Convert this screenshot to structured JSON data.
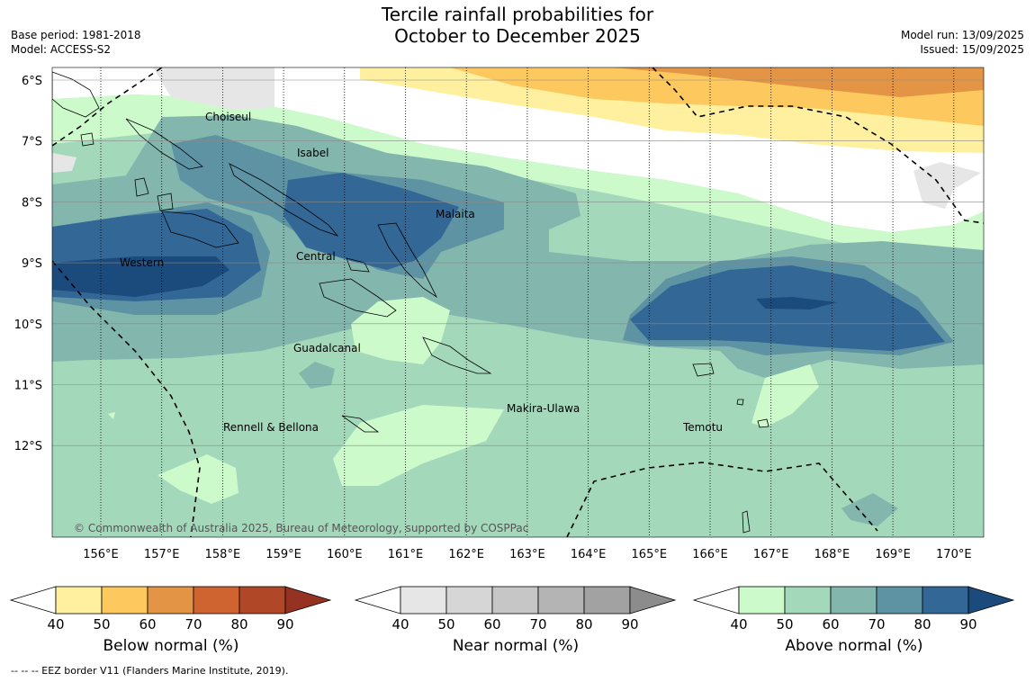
{
  "title_line1": "Tercile rainfall probabilities for",
  "title_line2": "October to December 2025",
  "base_period": "Base period: 1981-2018",
  "model": "Model: ACCESS-S2",
  "model_run": "Model run: 13/09/2025",
  "issued": "Issued: 15/09/2025",
  "lat_labels": [
    "6°S",
    "7°S",
    "8°S",
    "9°S",
    "10°S",
    "11°S",
    "12°S"
  ],
  "lon_labels": [
    "156°E",
    "157°E",
    "158°E",
    "159°E",
    "160°E",
    "161°E",
    "162°E",
    "163°E",
    "164°E",
    "165°E",
    "166°E",
    "167°E",
    "168°E",
    "169°E",
    "170°E"
  ],
  "regions": [
    "Choiseul",
    "Isabel",
    "Malaita",
    "Western",
    "Central",
    "Guadalcanal",
    "Makira-Ulawa",
    "Rennell & Bellona",
    "Temotu"
  ],
  "copyright": "© Commonwealth of Australia 2025, Bureau of Meteorology, supported by COSPPac",
  "colorbars": [
    {
      "title": "Below normal (%)",
      "ticks": [
        "40",
        "50",
        "60",
        "70",
        "80",
        "90"
      ],
      "colors": [
        "#fff0a0",
        "#fdc85e",
        "#e39545",
        "#cf6431",
        "#b04828",
        "#963222"
      ]
    },
    {
      "title": "Near normal (%)",
      "ticks": [
        "40",
        "50",
        "60",
        "70",
        "80",
        "90"
      ],
      "colors": [
        "#e6e6e6",
        "#d6d6d6",
        "#c6c6c6",
        "#b4b4b4",
        "#a2a2a2",
        "#8c8c8c"
      ]
    },
    {
      "title": "Above normal (%)",
      "ticks": [
        "40",
        "50",
        "60",
        "70",
        "80",
        "90"
      ],
      "colors": [
        "#ccfacb",
        "#a3d8bb",
        "#83b6ad",
        "#5d93a3",
        "#336796",
        "#1b4b7c"
      ]
    }
  ],
  "footnote": "--  --  -- EEZ border V11 (Flanders Marine Institute, 2019)."
}
